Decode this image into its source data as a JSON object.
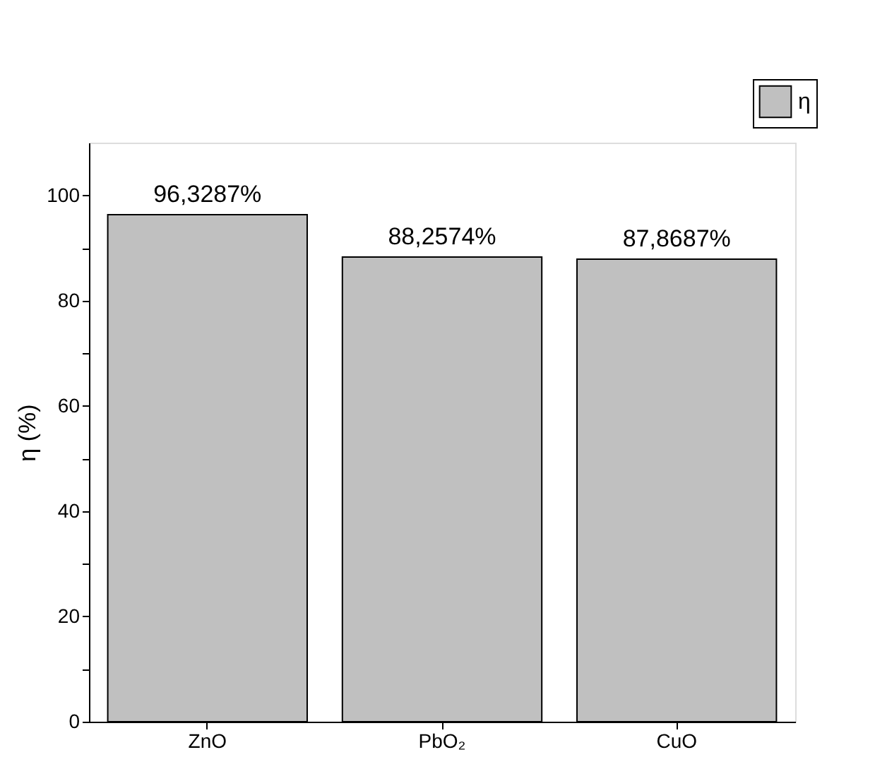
{
  "chart_data": {
    "type": "bar",
    "ylabel": "η (%)",
    "categories": [
      "ZnO",
      "PbO₂",
      "CuO"
    ],
    "series": [
      {
        "name": "η",
        "color": "#c0c0c0",
        "values": [
          96.3287,
          88.2574,
          87.8687
        ],
        "value_labels": [
          "96,3287%",
          "88,2574%",
          "87,8687%"
        ]
      }
    ],
    "ylim": [
      0,
      110
    ],
    "yticks": [
      0,
      {
        "value": 10,
        "label": null
      },
      20,
      {
        "value": 30,
        "label": null
      },
      40,
      {
        "value": 50,
        "label": null
      },
      60,
      {
        "value": 70,
        "label": null
      },
      80,
      {
        "value": 90,
        "label": null
      },
      100
    ],
    "grid": false,
    "legend": "top right"
  }
}
